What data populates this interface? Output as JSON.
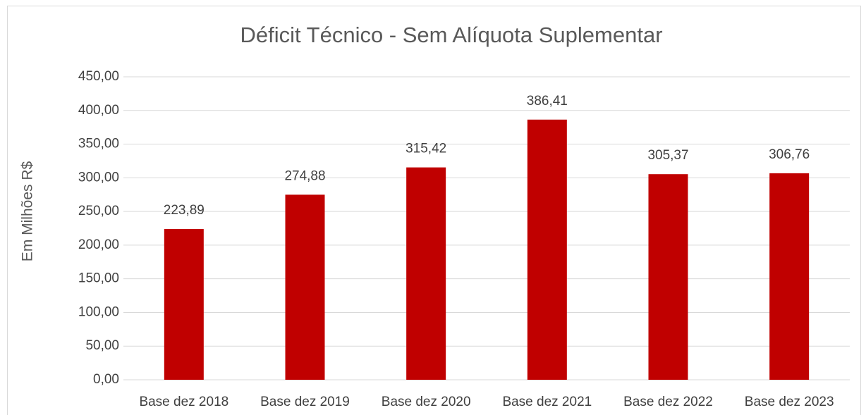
{
  "chart_data": {
    "type": "bar",
    "title": "Déficit Técnico - Sem Alíquota Suplementar",
    "y_label": "Em Milhões R$",
    "categories": [
      "Base dez 2018",
      "Base dez 2019",
      "Base dez 2020",
      "Base dez 2021",
      "Base dez 2022",
      "Base dez 2023"
    ],
    "values": [
      223.89,
      274.88,
      315.42,
      386.41,
      305.37,
      306.76
    ],
    "value_labels": [
      "223,89",
      "274,88",
      "315,42",
      "386,41",
      "305,37",
      "306,76"
    ],
    "color": "#c00000",
    "ylim": [
      0,
      450
    ],
    "yticks": [
      {
        "value": 0,
        "label": "0,00"
      },
      {
        "value": 50,
        "label": "50,00"
      },
      {
        "value": 100,
        "label": "100,00"
      },
      {
        "value": 150,
        "label": "150,00"
      },
      {
        "value": 200,
        "label": "200,00"
      },
      {
        "value": 250,
        "label": "250,00"
      },
      {
        "value": 300,
        "label": "300,00"
      },
      {
        "value": 350,
        "label": "350,00"
      },
      {
        "value": 400,
        "label": "400,00"
      },
      {
        "value": 450,
        "label": "450,00"
      }
    ],
    "grid": true
  }
}
